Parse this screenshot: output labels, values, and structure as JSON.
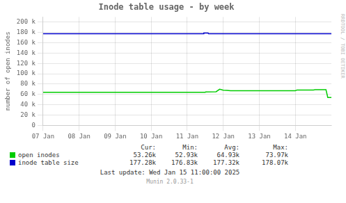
{
  "chart_data": {
    "type": "line",
    "title": "Inode table usage - by week",
    "ylabel": "number of open inodes",
    "xlim": [
      0,
      8
    ],
    "xticks": [
      {
        "value": 0,
        "label": "07 Jan"
      },
      {
        "value": 1,
        "label": "08 Jan"
      },
      {
        "value": 2,
        "label": "09 Jan"
      },
      {
        "value": 3,
        "label": "10 Jan"
      },
      {
        "value": 4,
        "label": "11 Jan"
      },
      {
        "value": 5,
        "label": "12 Jan"
      },
      {
        "value": 6,
        "label": "13 Jan"
      },
      {
        "value": 7,
        "label": "14 Jan"
      }
    ],
    "ylim": [
      0,
      210000
    ],
    "yticks": [
      0,
      {
        "value": 20000,
        "label": "20 k"
      },
      {
        "value": 40000,
        "label": "40 k"
      },
      {
        "value": 60000,
        "label": "60 k"
      },
      {
        "value": 80000,
        "label": "80 k"
      },
      {
        "value": 100000,
        "label": "100 k"
      },
      {
        "value": 120000,
        "label": "120 k"
      },
      {
        "value": 140000,
        "label": "140 k"
      },
      {
        "value": 160000,
        "label": "160 k"
      },
      {
        "value": 180000,
        "label": "180 k"
      },
      {
        "value": 200000,
        "label": "200 k"
      }
    ],
    "grid": true,
    "legend_columns": [
      "Cur:",
      "Min:",
      "Avg:",
      "Max:"
    ],
    "series": [
      {
        "name": "open inodes",
        "color": "#00cc00",
        "x": [
          0.0,
          4.5,
          4.51,
          4.8,
          4.9,
          5.0,
          5.1,
          5.2,
          7.0,
          7.05,
          7.5,
          7.55,
          7.85,
          7.9,
          8.0
        ],
        "values": [
          64000,
          64000,
          64500,
          65000,
          70000,
          68000,
          67500,
          67000,
          67000,
          68500,
          68500,
          69000,
          69000,
          54000,
          54000
        ],
        "stats": [
          "53.26k",
          "52.93k",
          "64.93k",
          "73.97k"
        ]
      },
      {
        "name": "inode table size",
        "color": "#0000cc",
        "x": [
          0.0,
          4.45,
          4.46,
          4.58,
          4.59,
          8.0
        ],
        "values": [
          177500,
          177500,
          179000,
          179000,
          177500,
          177500
        ],
        "stats": [
          "177.28k",
          "176.83k",
          "177.32k",
          "178.07k"
        ]
      }
    ],
    "annotations": [
      "RRDTOOL / TOBI OETIKER",
      "Last update: Wed Jan 15 11:00:00 2025",
      "Munin 2.0.33-1"
    ]
  }
}
